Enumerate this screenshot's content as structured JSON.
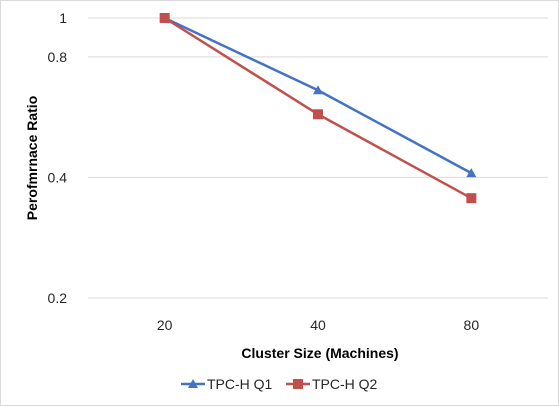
{
  "chart_data": {
    "type": "line",
    "xlabel": "Cluster Size (Machines)",
    "ylabel": "Perofmrnace Ratio",
    "categories": [
      "20",
      "40",
      "80"
    ],
    "y_scale": "log",
    "ylim": [
      0.2,
      1
    ],
    "yticks": [
      0.2,
      0.4,
      0.8,
      1
    ],
    "ytick_labels": [
      "0.2",
      "0.4",
      "0.8",
      "1"
    ],
    "grid": true,
    "legend_position": "bottom",
    "series": [
      {
        "name": "TPC-H Q1",
        "values": [
          1.0,
          0.66,
          0.41
        ],
        "color": "#4472c4",
        "marker": "triangle"
      },
      {
        "name": "TPC-H Q2",
        "values": [
          1.0,
          0.575,
          0.355
        ],
        "color": "#c0504d",
        "marker": "square"
      }
    ]
  }
}
